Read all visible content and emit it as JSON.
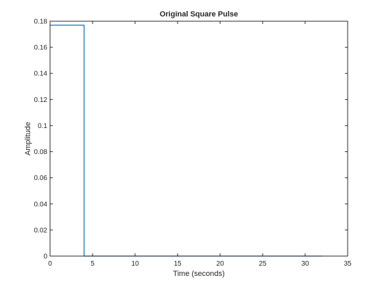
{
  "chart_data": {
    "type": "line",
    "title": "Original Square Pulse",
    "xlabel": "Time (seconds)",
    "ylabel": "Amplitude",
    "xlim": [
      0,
      35
    ],
    "ylim": [
      0,
      0.18
    ],
    "xticks": [
      0,
      5,
      10,
      15,
      20,
      25,
      30,
      35
    ],
    "xtick_labels": [
      "0",
      "5",
      "10",
      "15",
      "20",
      "25",
      "30",
      "35"
    ],
    "yticks": [
      0,
      0.02,
      0.04,
      0.06,
      0.08,
      0.1,
      0.12,
      0.14,
      0.16,
      0.18
    ],
    "ytick_labels": [
      "0",
      "0.02",
      "0.04",
      "0.06",
      "0.08",
      "0.1",
      "0.12",
      "0.14",
      "0.16",
      "0.18"
    ],
    "grid": false,
    "series": [
      {
        "color": "#0072BD",
        "x": [
          0,
          4,
          4,
          32
        ],
        "y": [
          0.177,
          0.177,
          0,
          0
        ]
      }
    ]
  }
}
